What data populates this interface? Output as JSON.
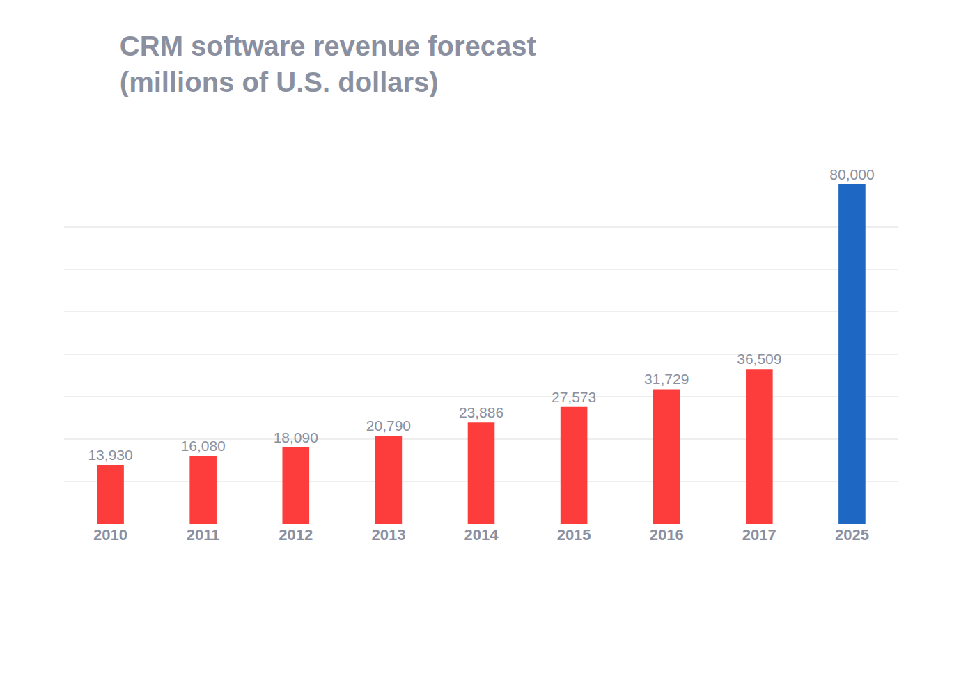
{
  "chart_data": {
    "type": "bar",
    "title": "CRM software revenue forecast\n(millions of U.S. dollars)",
    "categories": [
      "2010",
      "2011",
      "2012",
      "2013",
      "2014",
      "2015",
      "2016",
      "2017",
      "2025"
    ],
    "values": [
      13930,
      16080,
      18090,
      20790,
      23886,
      27573,
      31729,
      36509,
      80000
    ],
    "value_labels": [
      "13,930",
      "16,080",
      "18,090",
      "20,790",
      "23,886",
      "27,573",
      "31,729",
      "36,509",
      "80,000"
    ],
    "colors": [
      "#fc3d3b",
      "#fc3d3b",
      "#fc3d3b",
      "#fc3d3b",
      "#fc3d3b",
      "#fc3d3b",
      "#fc3d3b",
      "#fc3d3b",
      "#1e68c4"
    ],
    "ylim": [
      0,
      80000
    ],
    "yticks": [
      0,
      10000,
      20000,
      30000,
      40000,
      50000,
      60000,
      70000,
      80000
    ],
    "grid": true,
    "data_labels": true,
    "tick_labels": "x"
  }
}
